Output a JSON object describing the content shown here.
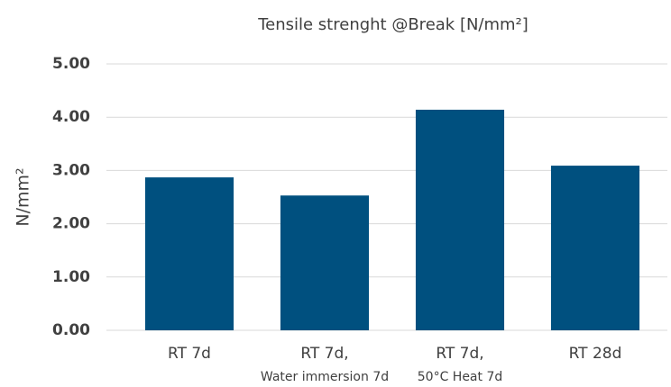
{
  "chart_data": {
    "type": "bar",
    "title": "Tensile strenght @Break [N/mm²]",
    "y_label": "N/mm²",
    "categories": [
      [
        "RT 7d"
      ],
      [
        "RT 7d,",
        "Water immersion 7d"
      ],
      [
        "RT 7d,",
        "50°C Heat 7d"
      ],
      [
        "RT 28d"
      ]
    ],
    "values": [
      2.87,
      2.53,
      4.14,
      3.09
    ],
    "color": "#00507f",
    "ylim": [
      0,
      5
    ],
    "yticks": [
      {
        "value": 0,
        "label": "0.00"
      },
      {
        "value": 1,
        "label": "1.00"
      },
      {
        "value": 2,
        "label": "2.00"
      },
      {
        "value": 3,
        "label": "3.00"
      },
      {
        "value": 4,
        "label": "4.00"
      },
      {
        "value": 5,
        "label": "5.00"
      }
    ],
    "grid": true
  }
}
